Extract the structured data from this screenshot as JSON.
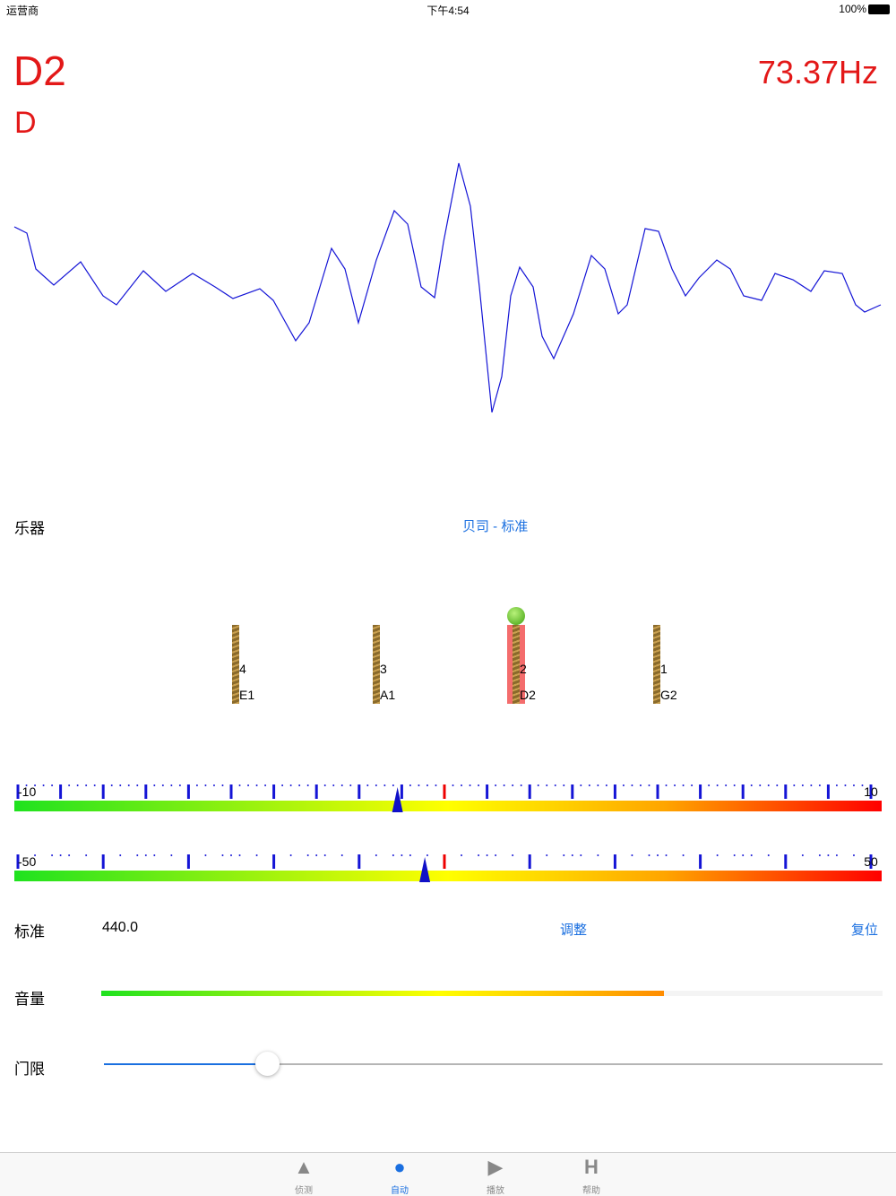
{
  "status_bar": {
    "carrier": "运营商",
    "time": "下午4:54",
    "battery": "100%"
  },
  "note": {
    "name": "D2",
    "letter": "D",
    "frequency": "73.37Hz"
  },
  "instrument": {
    "label": "乐器",
    "value": "贝司 - 标准"
  },
  "strings": [
    {
      "number": "4",
      "note": "E1"
    },
    {
      "number": "3",
      "note": "A1"
    },
    {
      "number": "2",
      "note": "D2",
      "active": true
    },
    {
      "number": "1",
      "note": "G2"
    }
  ],
  "meters": [
    {
      "min": -10,
      "max": 10,
      "value": -1.1
    },
    {
      "min": -50,
      "max": 50,
      "value": -2.3
    }
  ],
  "reference": {
    "label": "标准",
    "value": "440.0",
    "adjust": "调整",
    "reset": "复位"
  },
  "volume": {
    "label": "音量",
    "level": 0.72
  },
  "threshold": {
    "label": "门限",
    "level": 0.21
  },
  "tabs": [
    {
      "label": "侦测"
    },
    {
      "label": "自动",
      "active": true
    },
    {
      "label": "播放"
    },
    {
      "label": "帮助"
    }
  ]
}
